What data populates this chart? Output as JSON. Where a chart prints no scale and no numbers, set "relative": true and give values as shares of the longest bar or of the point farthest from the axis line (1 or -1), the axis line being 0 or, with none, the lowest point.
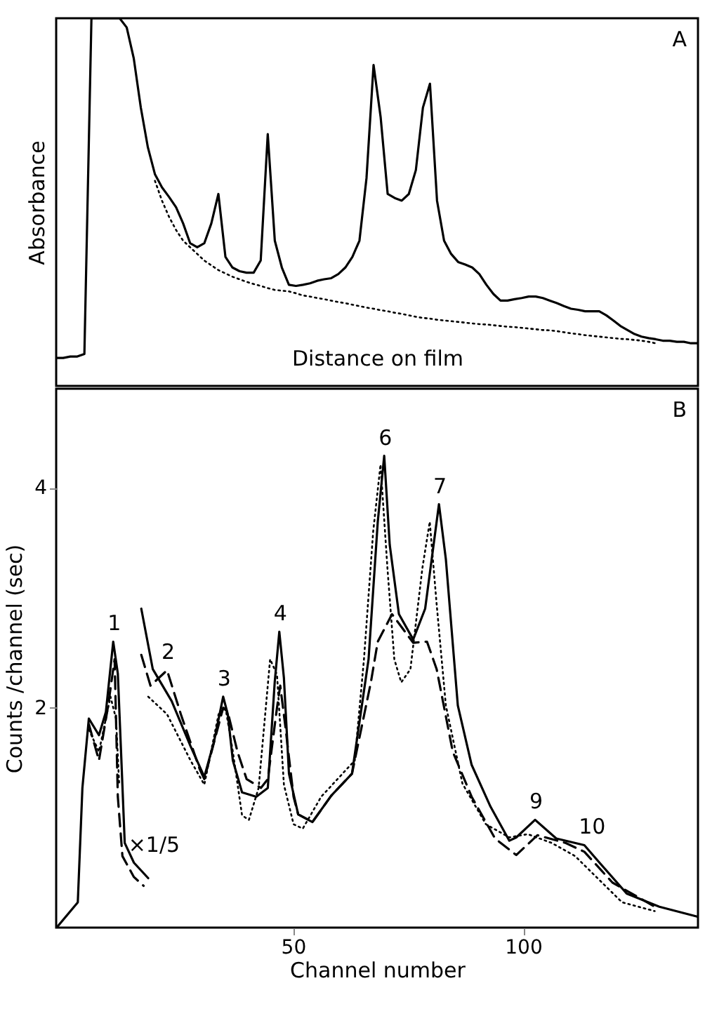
{
  "chart_data": [
    {
      "type": "line",
      "relative": true,
      "ylabel": "Absorbance",
      "xlabel": "Distance on film",
      "annotations": [
        "A"
      ],
      "categories": [
        null,
        null,
        null,
        null,
        null,
        null,
        null,
        null,
        null,
        null,
        null,
        null,
        null,
        null,
        null,
        null,
        null,
        null,
        null,
        null,
        null,
        null,
        null,
        null,
        null,
        null,
        null,
        null,
        null,
        null,
        null,
        null,
        null,
        null,
        null,
        null,
        null,
        null,
        null,
        null,
        null,
        null,
        null,
        null,
        null,
        null,
        null,
        null,
        null,
        null,
        null,
        null,
        null,
        null,
        null,
        null,
        null,
        null,
        null,
        null,
        null,
        null,
        null,
        null,
        null,
        null,
        null,
        null,
        null,
        null,
        null,
        null,
        null,
        null,
        null,
        null,
        null,
        null,
        null,
        null,
        null,
        null,
        null,
        null,
        null,
        null,
        null,
        null,
        null,
        null,
        null,
        null
      ],
      "series": [
        {
          "color": "#000000",
          "line_style": "solid",
          "values": [
            0.076,
            0.076,
            0.08,
            0.08,
            0.087,
            1,
            1,
            1,
            1,
            1,
            0.975,
            0.891,
            0.757,
            0.649,
            0.576,
            0.54,
            0.514,
            0.486,
            0.442,
            0.388,
            0.377,
            0.388,
            0.442,
            0.522,
            0.351,
            0.322,
            0.312,
            0.308,
            0.308,
            0.341,
            0.685,
            0.395,
            0.322,
            0.275,
            0.272,
            0.275,
            0.279,
            0.286,
            0.29,
            0.293,
            0.304,
            0.322,
            0.351,
            0.395,
            0.565,
            0.873,
            0.732,
            0.522,
            0.511,
            0.504,
            0.522,
            0.587,
            0.757,
            0.822,
            0.504,
            0.395,
            0.359,
            0.337,
            0.33,
            0.322,
            0.304,
            0.275,
            0.25,
            0.232,
            0.232,
            0.236,
            0.239,
            0.243,
            0.243,
            0.239,
            0.232,
            0.225,
            0.217,
            0.21,
            0.207,
            0.203,
            0.203,
            0.203,
            0.192,
            0.178,
            0.163,
            0.152,
            0.141,
            0.134,
            0.13,
            0.127,
            0.123,
            0.123,
            0.12,
            0.12,
            0.116,
            0.116
          ]
        },
        {
          "color": "#000000",
          "line_style": "dotted",
          "values": [
            null,
            null,
            null,
            null,
            null,
            null,
            null,
            null,
            null,
            null,
            null,
            null,
            null,
            null,
            0.558,
            0.504,
            0.46,
            0.424,
            0.395,
            0.377,
            0.359,
            0.341,
            0.328,
            0.315,
            0.306,
            0.297,
            0.29,
            0.283,
            0.277,
            0.272,
            0.266,
            0.261,
            0.259,
            0.257,
            0.252,
            0.246,
            0.243,
            0.239,
            0.236,
            0.232,
            0.228,
            0.225,
            0.221,
            0.217,
            0.213,
            0.21,
            0.206,
            0.203,
            0.199,
            0.196,
            0.192,
            0.188,
            0.185,
            0.183,
            0.18,
            0.178,
            0.176,
            0.174,
            0.172,
            0.17,
            0.168,
            0.167,
            0.165,
            0.163,
            0.161,
            0.16,
            0.158,
            0.156,
            0.154,
            0.152,
            0.151,
            0.149,
            0.146,
            0.143,
            0.141,
            0.138,
            0.136,
            0.134,
            0.132,
            0.13,
            0.128,
            0.127,
            0.125,
            0.123,
            0.12,
            0.116,
            null,
            null,
            null,
            null,
            null,
            null
          ]
        }
      ]
    },
    {
      "type": "line",
      "xlabel": "Channel number",
      "ylabel": "Counts /channel (sec)",
      "xlim": [
        -1.5,
        138
      ],
      "ylim": [
        0,
        4.9
      ],
      "xticks": [
        50,
        100
      ],
      "yticks": [
        2,
        4
      ],
      "annotations": [
        "B",
        {
          "text": "1",
          "x": 10.9,
          "y": 2.6
        },
        {
          "text": "2",
          "x": 22.6,
          "y": 2.34
        },
        {
          "text": "3",
          "x": 34.8,
          "y": 2.1
        },
        {
          "text": "4",
          "x": 47,
          "y": 2.69
        },
        {
          "text": "6",
          "x": 69.8,
          "y": 4.29
        },
        {
          "text": "7",
          "x": 81.7,
          "y": 3.85
        },
        {
          "text": "9",
          "x": 102.6,
          "y": 0.98
        },
        {
          "text": "10",
          "x": 113.3,
          "y": 0.75
        },
        {
          "text": "×1/5",
          "x": 15.4,
          "y": 0.59
        }
      ],
      "series": [
        {
          "color": "#000000",
          "line_style": "solid",
          "x": [
            -1.4,
            3.2,
            4.2,
            5.6,
            7.8,
            9.3,
            10.9,
            11.9,
            12.6,
            13.4,
            15.4,
            18.5
          ],
          "values": [
            0,
            0.23,
            1.27,
            1.9,
            1.75,
            1.96,
            2.6,
            2.31,
            1.6,
            0.77,
            0.59,
            0.45
          ]
        },
        {
          "color": "#000000",
          "line_style": "dashed",
          "x": [
            5.6,
            7.8,
            9.8,
            11.2,
            11.9,
            12.9,
            15.4,
            17.5
          ],
          "values": [
            1.85,
            1.52,
            2.02,
            2.44,
            1.19,
            0.65,
            0.46,
            0.38
          ]
        },
        {
          "color": "#000000",
          "line_style": "dotted",
          "x": [
            5.6,
            7.8,
            9.8,
            10.3,
            11.5,
            12.2
          ],
          "values": [
            1.8,
            1.6,
            2.0,
            2.1,
            1.9,
            1.3
          ]
        },
        {
          "color": "#000000",
          "line_style": "solid",
          "x": [
            17,
            19.5,
            23.6,
            27.7,
            30.7,
            32.8,
            34.8,
            35.8,
            36.9,
            38.9,
            42,
            44.5,
            46,
            47,
            48,
            49.1,
            51.1,
            54.2,
            58.3,
            62.8,
            66.4,
            68.4,
            69.8,
            71,
            73,
            76.1,
            78.7,
            81.7,
            83.2,
            85.8,
            88.8,
            92.9,
            97,
            98.5,
            102.6,
            107.2,
            113.3,
            116.4,
            122.5,
            129.6,
            137.8
          ],
          "values": [
            2.9,
            2.35,
            2.06,
            1.65,
            1.37,
            1.69,
            2.1,
            1.94,
            1.52,
            1.23,
            1.19,
            1.27,
            2.23,
            2.69,
            2.27,
            1.4,
            1.03,
            0.96,
            1.2,
            1.4,
            2.44,
            3.69,
            4.29,
            3.48,
            2.85,
            2.62,
            2.9,
            3.85,
            3.35,
            2.02,
            1.48,
            1.1,
            0.79,
            0.82,
            0.98,
            0.81,
            0.75,
            0.6,
            0.31,
            0.19,
            0.1
          ]
        },
        {
          "color": "#000000",
          "line_style": "dashed",
          "x": [
            17,
            19,
            22.6,
            25.6,
            29.7,
            30.7,
            34.8,
            35.8,
            37.9,
            39.9,
            43,
            44.5,
            46.5,
            47.2,
            48.4,
            50.1,
            51.1,
            54.2,
            58.3,
            62.8,
            66.9,
            68.4,
            71.5,
            76.1,
            79.1,
            81.2,
            84.7,
            88.8,
            93.9,
            98.5,
            103.1,
            109.2,
            113.3,
            119.4,
            128.6
          ],
          "values": [
            2.48,
            2.2,
            2.34,
            1.94,
            1.44,
            1.35,
            2.0,
            1.96,
            1.6,
            1.35,
            1.27,
            1.35,
            2.0,
            2.2,
            1.8,
            1.19,
            1.03,
            0.96,
            1.2,
            1.4,
            2.23,
            2.6,
            2.85,
            2.59,
            2.6,
            2.35,
            1.6,
            1.19,
            0.81,
            0.66,
            0.84,
            0.77,
            0.69,
            0.41,
            0.19
          ]
        },
        {
          "color": "#000000",
          "line_style": "dotted",
          "x": [
            18.5,
            22.6,
            27.7,
            30.7,
            33.8,
            35.3,
            36.9,
            38.9,
            40.4,
            42.5,
            45,
            46.5,
            48,
            50.1,
            52.1,
            56.1,
            63.4,
            65.4,
            67.4,
            69,
            70.5,
            72,
            73.5,
            75.5,
            78.1,
            79.7,
            81.2,
            83.2,
            86.8,
            91.9,
            97,
            101,
            106.2,
            111.3,
            116.4,
            121.5,
            128.6
          ],
          "values": [
            2.1,
            1.94,
            1.52,
            1.3,
            1.94,
            2.0,
            1.6,
            1.02,
            0.98,
            1.27,
            2.44,
            2.3,
            1.3,
            0.94,
            0.9,
            1.19,
            1.52,
            2.44,
            3.6,
            4.21,
            3.27,
            2.44,
            2.23,
            2.35,
            3.27,
            3.69,
            2.94,
            2.02,
            1.31,
            0.94,
            0.82,
            0.85,
            0.77,
            0.65,
            0.44,
            0.23,
            0.15
          ]
        }
      ]
    }
  ]
}
